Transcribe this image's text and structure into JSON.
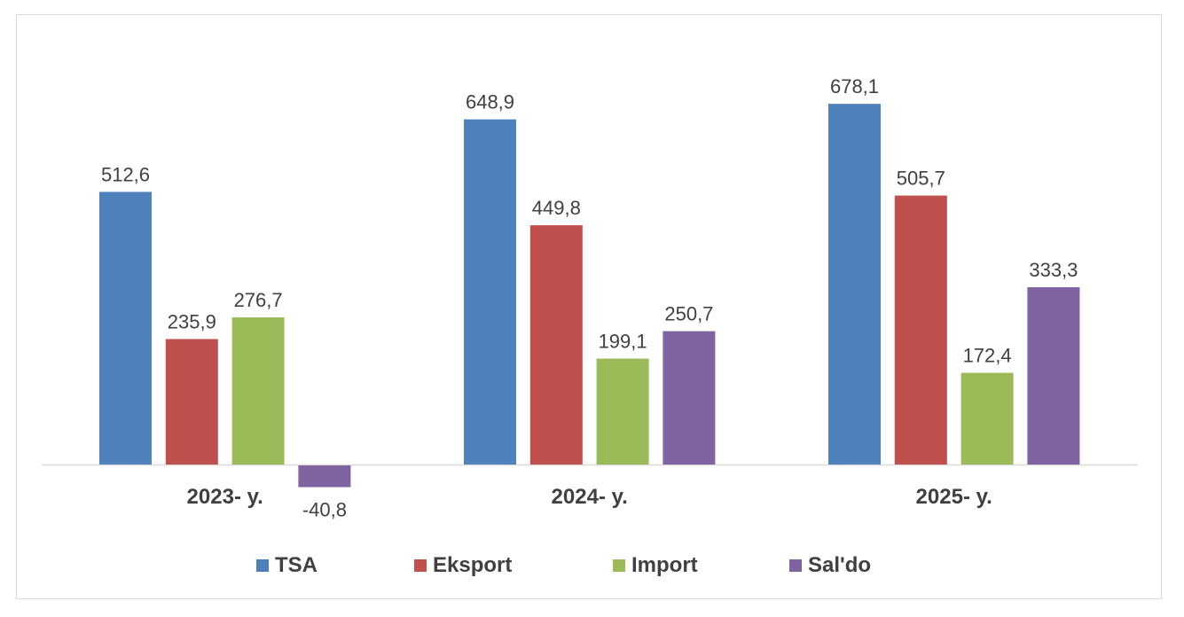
{
  "chart_data": {
    "type": "bar",
    "categories": [
      "2023- y.",
      "2024- y.",
      "2025- y."
    ],
    "series": [
      {
        "name": "TSA",
        "values": [
          512.6,
          648.9,
          678.1
        ],
        "color": "#4f81bd",
        "labels": [
          "512,6",
          "648,9",
          "678,1"
        ]
      },
      {
        "name": "Eksport",
        "values": [
          235.9,
          449.8,
          505.7
        ],
        "color": "#c0504d",
        "labels": [
          "235,9",
          "449,8",
          "505,7"
        ]
      },
      {
        "name": "Import",
        "values": [
          276.7,
          199.1,
          172.4
        ],
        "color": "#9bbb59",
        "labels": [
          "276,7",
          "199,1",
          "172,4"
        ]
      },
      {
        "name": "Sal'do",
        "values": [
          -40.8,
          250.7,
          333.3
        ],
        "color": "#8064a2",
        "labels": [
          "-40,8",
          "250,7",
          "333,3"
        ]
      }
    ],
    "grid": false,
    "legend": "bottom",
    "title": "",
    "xlabel": "",
    "ylabel": ""
  }
}
